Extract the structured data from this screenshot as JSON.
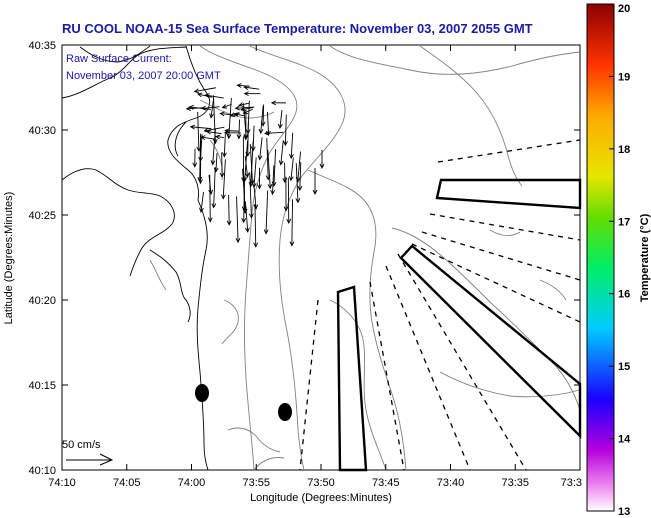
{
  "title": "RU COOL  NOAA-15  Sea Surface Temperature:  November 03, 2007 2055 GMT",
  "annotation": {
    "line1": "Raw Surface Current:",
    "line2": "November 03, 2007 20:00 GMT"
  },
  "x_axis": {
    "label": "Longitude (Degrees:Minutes)",
    "ticks": [
      "74:10",
      "74:05",
      "74:00",
      "73:55",
      "73:50",
      "73:45",
      "73:40",
      "73:35",
      "73:3"
    ]
  },
  "y_axis": {
    "label": "Latitude (Degrees:Minutes)",
    "ticks": [
      "40:35",
      "40:30",
      "40:25",
      "40:20",
      "40:15",
      "40:10"
    ]
  },
  "colorbar": {
    "label": "Temperature (°C)",
    "ticks": [
      "20",
      "19",
      "18",
      "17",
      "16",
      "15",
      "14",
      "13"
    ]
  },
  "scale_vector": {
    "label": "50 cm/s"
  },
  "colors": {
    "title_text": "#1a1aa6",
    "land": "#ffffff",
    "contour": "#808080",
    "vector": "#000000"
  }
}
